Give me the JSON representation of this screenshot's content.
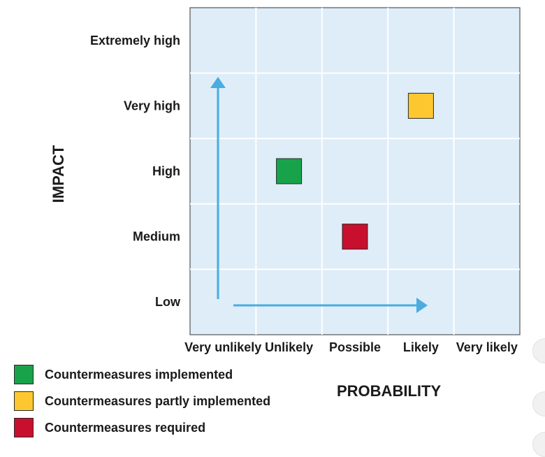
{
  "chart_data": {
    "type": "scatter",
    "xlabel": "PROBABILITY",
    "ylabel": "IMPACT",
    "x_categories": [
      "Very unlikely",
      "Unlikely",
      "Possible",
      "Likely",
      "Very likely"
    ],
    "y_categories": [
      "Low",
      "Medium",
      "High",
      "Very high",
      "Extremely high"
    ],
    "series": [
      {
        "name": "Countermeasures implemented",
        "color": "#18a34a",
        "points": [
          {
            "x": "Unlikely",
            "y": "High"
          }
        ]
      },
      {
        "name": "Countermeasures partly implemented",
        "color": "#fdc82f",
        "points": [
          {
            "x": "Likely",
            "y": "Very high"
          }
        ]
      },
      {
        "name": "Countermeasures required",
        "color": "#c8102e",
        "points": [
          {
            "x": "Possible",
            "y": "Medium"
          }
        ]
      }
    ],
    "grid": true,
    "background": "#deedf8",
    "arrow_color": "#4aace0",
    "legend_position": "bottom-left"
  }
}
